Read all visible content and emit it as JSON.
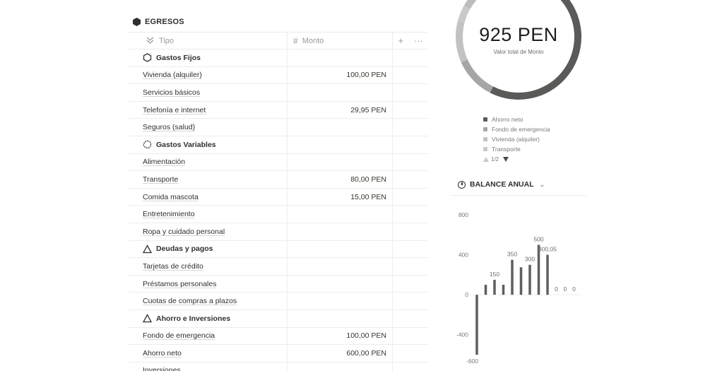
{
  "table": {
    "title": "EGRESOS",
    "columns": {
      "tipo": "Tipo",
      "monto": "Monto",
      "add": "+",
      "more": "···"
    },
    "rows": [
      {
        "tipo": "Gastos Fijos",
        "monto": "",
        "group": true,
        "icon": "hexagon-outline-icon"
      },
      {
        "tipo": "Vivienda (alquiler)",
        "monto": "100,00 PEN"
      },
      {
        "tipo": "Servicios básicos",
        "monto": ""
      },
      {
        "tipo": "Telefonía e internet",
        "monto": "29,95 PEN"
      },
      {
        "tipo": "Seguros (salud)",
        "monto": ""
      },
      {
        "tipo": "Gastos Variables",
        "monto": "",
        "group": true,
        "icon": "dashed-circle-icon"
      },
      {
        "tipo": "Alimentación",
        "monto": ""
      },
      {
        "tipo": "Transporte",
        "monto": "80,00 PEN"
      },
      {
        "tipo": "Comida mascota",
        "monto": "15,00 PEN"
      },
      {
        "tipo": "Entretenimiento",
        "monto": ""
      },
      {
        "tipo": "Ropa y cuidado personal",
        "monto": ""
      },
      {
        "tipo": "Deudas y pagos",
        "monto": "",
        "group": true,
        "icon": "triangle-outline-icon"
      },
      {
        "tipo": "Tarjetas de crédito",
        "monto": ""
      },
      {
        "tipo": "Préstamos personales",
        "monto": ""
      },
      {
        "tipo": "Cuotas de compras a plazos",
        "monto": ""
      },
      {
        "tipo": "Ahorro e Inversiones",
        "monto": "",
        "group": true,
        "icon": "triangle-outline-icon"
      },
      {
        "tipo": "Fondo de emergencia",
        "monto": "100,00 PEN"
      },
      {
        "tipo": "Ahorro neto",
        "monto": "600,00 PEN"
      },
      {
        "tipo": "Inversiones",
        "monto": ""
      }
    ]
  },
  "donut": {
    "total": "925 PEN",
    "subtitle": "Valor total de Monto",
    "legend": [
      {
        "label": "Ahorro neto",
        "color": "#5a5a58"
      },
      {
        "label": "Fondo de emergencia",
        "color": "#a6a6a4"
      },
      {
        "label": "Vivienda (alquiler)",
        "color": "#c2c2c0"
      },
      {
        "label": "Transporte",
        "color": "#c9c9c7"
      }
    ],
    "pager": "1/2"
  },
  "balance": {
    "title": "BALANCE ANUAL"
  },
  "chart_data": {
    "type": "bar",
    "title": "BALANCE ANUAL",
    "ylim": [
      -600,
      800
    ],
    "yticks": [
      800,
      400,
      0,
      -400,
      -600
    ],
    "values": [
      -600,
      100,
      150,
      100,
      350,
      275,
      300,
      500,
      400.05,
      0,
      0,
      0
    ],
    "data_labels": [
      "",
      "",
      "150",
      "",
      "350",
      "",
      "300",
      "500",
      "400,05",
      "0",
      "0",
      "0"
    ],
    "bar_color": "#5f5f5d",
    "grid": false
  }
}
